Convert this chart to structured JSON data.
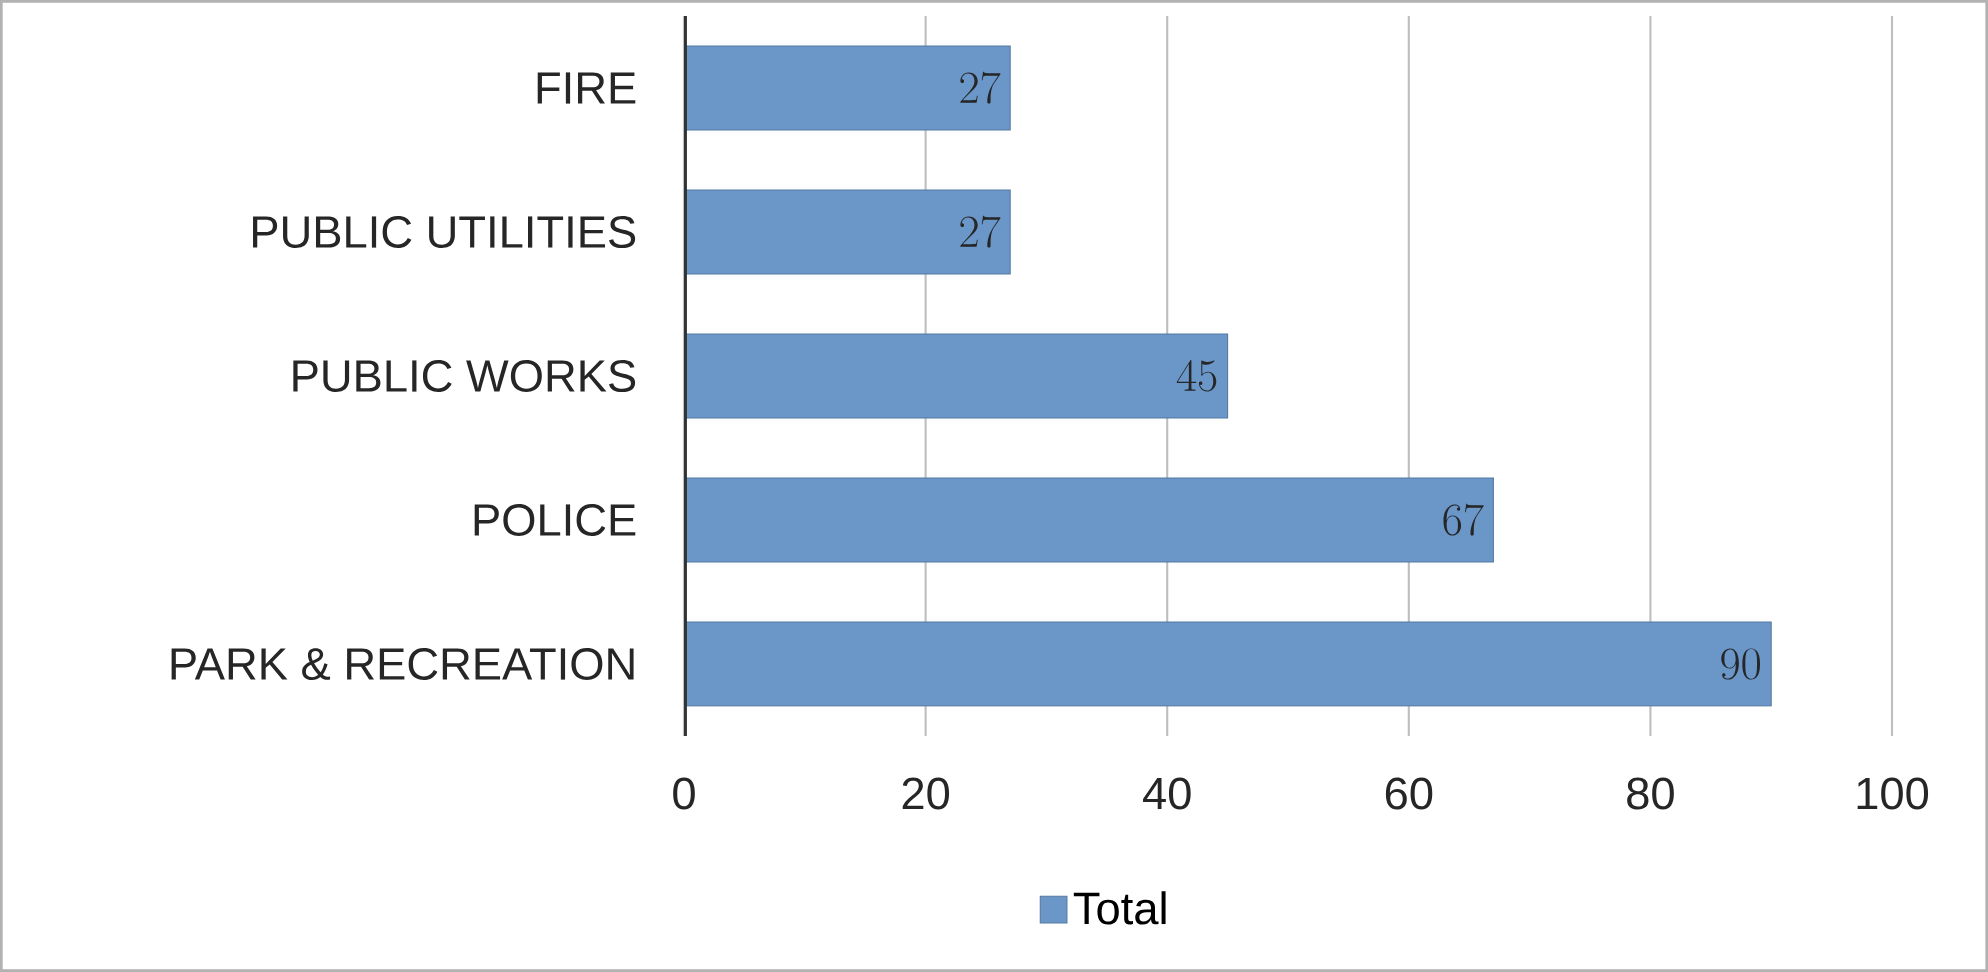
{
  "chart_data": {
    "type": "bar",
    "orientation": "horizontal",
    "categories": [
      "FIRE",
      "PUBLIC UTILITIES",
      "PUBLIC WORKS",
      "POLICE",
      "PARK & RECREATION"
    ],
    "series": [
      {
        "name": "Total",
        "color": "#6a96c8",
        "values": [
          27,
          27,
          45,
          67,
          90
        ]
      }
    ],
    "xlim": [
      0,
      100
    ],
    "xticks": [
      0,
      20,
      40,
      60,
      80,
      100
    ],
    "grid": "x",
    "legend": "bottom",
    "data_labels": true
  }
}
